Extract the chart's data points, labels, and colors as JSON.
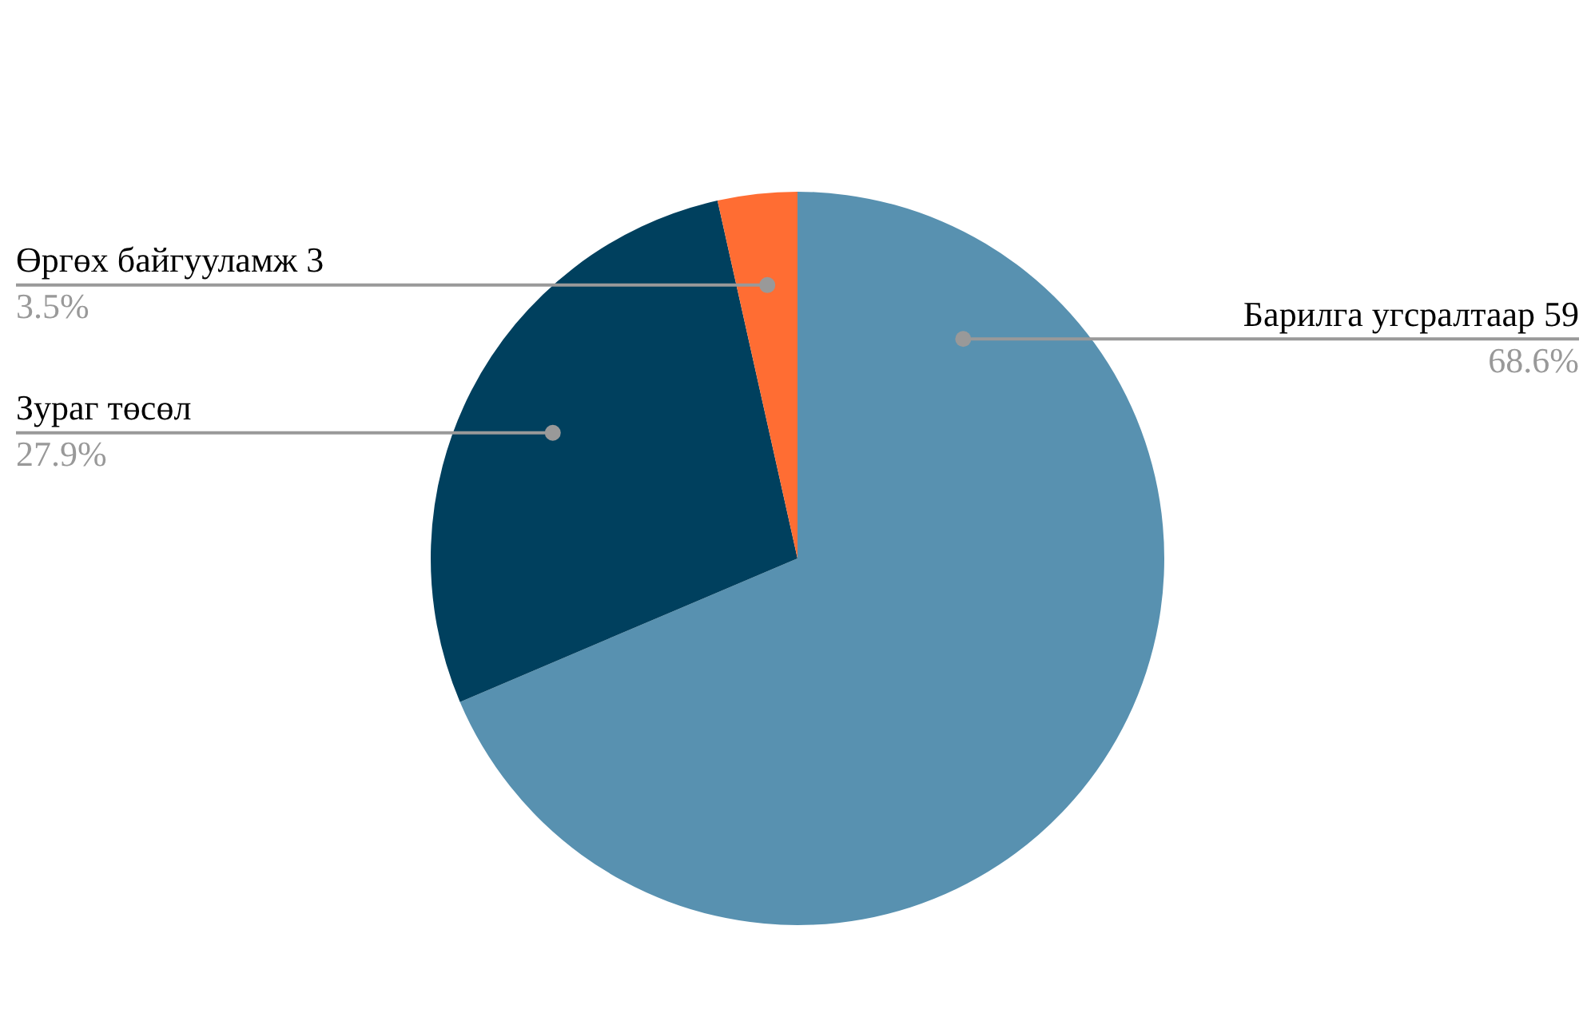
{
  "chart_data": {
    "type": "pie",
    "categories": [
      "Барилга угсралтаар 59",
      "Зураг төсөл",
      "Өргөх байгууламж 3"
    ],
    "values": [
      68.6,
      27.9,
      3.5
    ],
    "colors": [
      "#5891b0",
      "#00405e",
      "#ff6d33"
    ],
    "value_labels": [
      "68.6%",
      "27.9%",
      "3.5%"
    ],
    "legend": false
  }
}
